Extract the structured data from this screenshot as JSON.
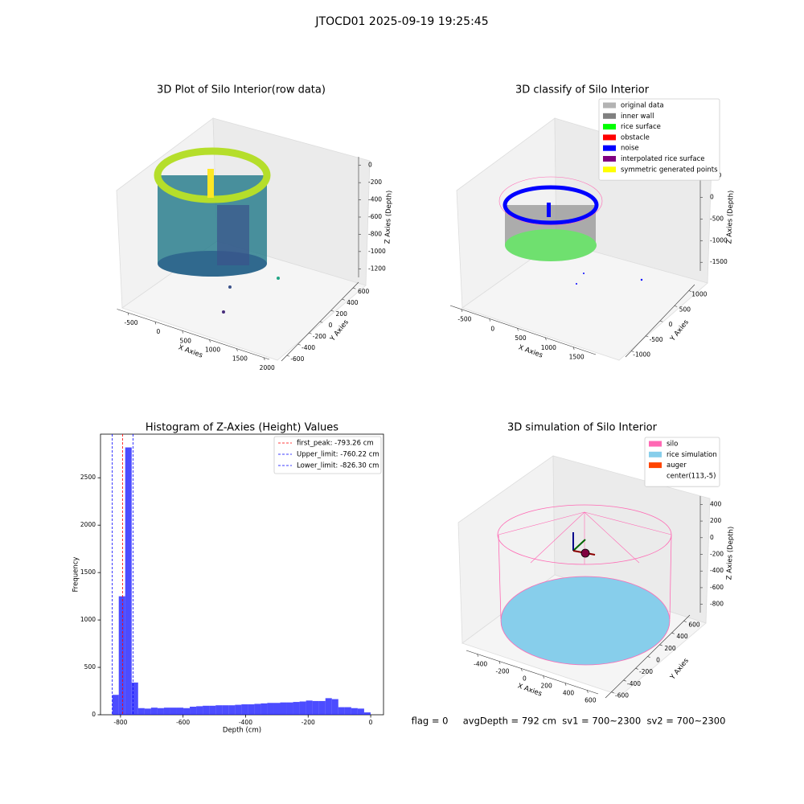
{
  "figure": {
    "title": "JTOCD01 2025-09-19 19:25:45",
    "footer": "flag = 0     avgDepth = 792 cm  sv1 = 700~2300  sv2 = 700~2300"
  },
  "chart_data": [
    {
      "type": "scatter3d",
      "title": "3D Plot of Silo Interior(row data)",
      "x_label": "X Axies",
      "y_label": "Y Axies",
      "z_label": "Z Axies (Depth)",
      "xlim": [
        -700,
        2100
      ],
      "xticks": [
        -500,
        0,
        500,
        1000,
        1500,
        2000
      ],
      "ylim": [
        -700,
        700
      ],
      "yticks": [
        -600,
        -400,
        -200,
        0,
        200,
        400,
        600
      ],
      "zlim": [
        -1300,
        100
      ],
      "zticks": [
        -1200,
        -1000,
        -800,
        -600,
        -400,
        -200,
        0
      ]
    },
    {
      "type": "scatter3d",
      "title": "3D classify of Silo Interior",
      "x_label": "X Axies",
      "y_label": "Y Axies",
      "z_label": "Z Axies (Depth)",
      "xlim": [
        -700,
        1900
      ],
      "xticks": [
        -500,
        0,
        500,
        1000,
        1500
      ],
      "ylim": [
        -1200,
        1200
      ],
      "yticks": [
        -1000,
        -500,
        0,
        500,
        1000
      ],
      "zlim": [
        -1700,
        600
      ],
      "zticks": [
        -1500,
        -1000,
        -500,
        0,
        500
      ],
      "legend": {
        "position": "upper right",
        "entries": [
          {
            "name": "original data",
            "color": "#b3b3b3"
          },
          {
            "name": "inner wall",
            "color": "#808080"
          },
          {
            "name": "rice surface",
            "color": "#00ff00"
          },
          {
            "name": "obstacle",
            "color": "#ff0000"
          },
          {
            "name": "noise",
            "color": "#0000ff"
          },
          {
            "name": "interpolated rice surface",
            "color": "#800080"
          },
          {
            "name": "symmetric generated points",
            "color": "#ffff00"
          }
        ]
      }
    },
    {
      "type": "histogram",
      "title": "Histogram of Z-Axies (Height) Values",
      "x_label": "Depth (cm)",
      "y_label": "Frequency",
      "color": "#0000ff",
      "alpha": 0.7,
      "bins": [
        -826.3,
        -805.6,
        -785.0,
        -764.3,
        -743.7,
        -723.0,
        -702.4,
        -681.7,
        -661.1,
        -640.4,
        -619.8,
        -599.1,
        -578.5,
        -557.8,
        -537.2,
        -516.5,
        -495.9,
        -475.2,
        -454.6,
        -433.9,
        -413.3,
        -392.6,
        -372.0,
        -351.3,
        -330.7,
        -310.0,
        -289.4,
        -268.7,
        -248.1,
        -227.4,
        -206.8,
        -186.1,
        -165.5,
        -144.8,
        -124.2,
        -103.5,
        -82.9,
        -62.2,
        -41.6,
        -20.9,
        -0.3
      ],
      "values": [
        210,
        1250,
        2820,
        340,
        70,
        65,
        75,
        70,
        75,
        75,
        75,
        70,
        85,
        90,
        95,
        95,
        100,
        100,
        100,
        105,
        110,
        110,
        115,
        120,
        125,
        125,
        130,
        130,
        135,
        140,
        150,
        145,
        145,
        175,
        165,
        80,
        80,
        70,
        65,
        25
      ],
      "xlim": [
        -864,
        41
      ],
      "xticks": [
        -800,
        -600,
        -400,
        -200,
        0
      ],
      "ylim": [
        0,
        2960
      ],
      "yticks": [
        0,
        500,
        1000,
        1500,
        2000,
        2500
      ],
      "vlines": [
        {
          "label": "first_peak: -793.26 cm",
          "value": -793.26,
          "color": "#ff0000"
        },
        {
          "label": "Upper_limit: -760.22 cm",
          "value": -760.22,
          "color": "#0000ff"
        },
        {
          "label": "Lower_limit: -826.30 cm",
          "value": -826.3,
          "color": "#0000ff"
        }
      ],
      "legend": {
        "position": "upper right"
      }
    },
    {
      "type": "surface3d",
      "title": "3D simulation of Silo Interior",
      "x_label": "X Axies",
      "y_label": "Y Axies",
      "z_label": "Z Axies (Depth)",
      "xlim": [
        -500,
        700
      ],
      "xticks": [
        -400,
        -200,
        0,
        200,
        400,
        600
      ],
      "ylim": [
        -700,
        700
      ],
      "yticks": [
        -600,
        -400,
        -200,
        0,
        200,
        400,
        600
      ],
      "zlim": [
        -900,
        500
      ],
      "zticks": [
        -800,
        -600,
        -400,
        -200,
        0,
        200,
        400
      ],
      "legend": {
        "position": "upper right",
        "entries": [
          {
            "name": "silo",
            "color": "#ff69b4"
          },
          {
            "name": "rice simulation",
            "color": "#87ceeb"
          },
          {
            "name": "auger",
            "color": "#ff4500"
          },
          {
            "name": "center(113,-5)",
            "color": "#ffffff"
          }
        ]
      }
    }
  ]
}
